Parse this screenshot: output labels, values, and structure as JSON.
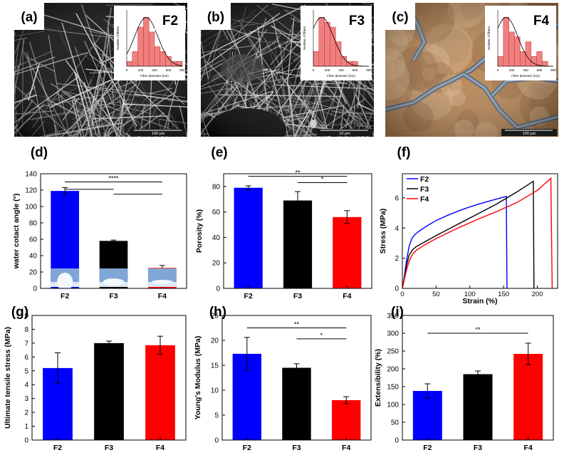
{
  "panels_img": [
    {
      "letter": "(a)",
      "tag": "F2",
      "scale_text": "100 μm",
      "inset_ylabel": "Number of fibers",
      "inset_xlabel": "Fiber diameter (nm)",
      "inset_ticks": [
        "0",
        "200",
        "400",
        "600",
        "800"
      ],
      "hist": [
        1,
        3,
        8,
        10,
        7,
        4,
        3,
        2,
        1,
        1
      ]
    },
    {
      "letter": "(b)",
      "tag": "F3",
      "scale_text": "10 μm",
      "inset_ylabel": "Number of fibers",
      "inset_xlabel": "Fiber diameter (nm)",
      "inset_ticks": [
        "0",
        "200",
        "400",
        "600",
        "800"
      ],
      "hist": [
        3,
        10,
        9,
        8,
        5,
        2,
        1,
        1,
        0,
        0
      ]
    },
    {
      "letter": "(c)",
      "tag": "F4",
      "scale_text": "100 μm",
      "inset_ylabel": "Number of fibers",
      "inset_xlabel": "Fiber diameter (nm)",
      "inset_ticks": [
        "0",
        "200",
        "400",
        "600",
        "800"
      ],
      "hist": [
        2,
        10,
        7,
        6,
        3,
        5,
        2,
        3,
        1,
        0
      ]
    }
  ],
  "colors": {
    "F2": "#0000ff",
    "F3": "#000000",
    "F4": "#ff0000",
    "sem_bg": "#151515",
    "sem_brown": "#b98858",
    "hist_fill": "#f08080"
  },
  "chart_data": [
    {
      "panel": "(d)",
      "type": "bar",
      "categories": [
        "F2",
        "F3",
        "F4"
      ],
      "values": [
        119,
        58,
        25
      ],
      "errors": [
        4,
        1,
        3
      ],
      "ylabel": "water cotact angle (°)",
      "ylim": [
        0,
        140
      ],
      "yticks": [
        0,
        20,
        40,
        60,
        80,
        100,
        120,
        140
      ],
      "significance": [
        {
          "label": "****",
          "from": 0,
          "to": 2,
          "y": 130
        }
      ],
      "grid": false
    },
    {
      "panel": "(e)",
      "type": "bar",
      "categories": [
        "F2",
        "F3",
        "F4"
      ],
      "values": [
        79,
        69,
        56
      ],
      "errors": [
        1.5,
        7,
        5
      ],
      "ylabel": "Porosity (%)",
      "ylim": [
        0,
        90
      ],
      "yticks": [
        0,
        20,
        40,
        60,
        80
      ],
      "significance": [
        {
          "label": "**",
          "from": 0,
          "to": 2,
          "y": 88
        },
        {
          "label": "*",
          "from": 1,
          "to": 2,
          "y": 83
        }
      ],
      "grid": false
    },
    {
      "panel": "(f)",
      "type": "line",
      "xlabel": "Strain (%)",
      "ylabel": "Stress (MPa)",
      "xlim": [
        0,
        230
      ],
      "ylim": [
        0,
        7.6
      ],
      "xticks": [
        0,
        50,
        100,
        150,
        200
      ],
      "yticks": [
        0,
        2,
        4,
        6
      ],
      "legend": "top-left",
      "series": [
        {
          "name": "F2",
          "x": [
            0,
            3,
            6,
            10,
            14,
            18,
            25,
            35,
            50,
            70,
            90,
            110,
            130,
            150,
            154,
            155
          ],
          "y": [
            0,
            0.8,
            1.8,
            2.8,
            3.3,
            3.55,
            3.8,
            4.1,
            4.5,
            4.9,
            5.25,
            5.55,
            5.8,
            6.05,
            6.1,
            0
          ]
        },
        {
          "name": "F3",
          "x": [
            0,
            3,
            6,
            10,
            15,
            20,
            30,
            50,
            80,
            110,
            140,
            170,
            194,
            195
          ],
          "y": [
            0,
            0.7,
            1.5,
            2.2,
            2.55,
            2.75,
            3.0,
            3.5,
            4.2,
            4.9,
            5.6,
            6.4,
            7.1,
            0
          ]
        },
        {
          "name": "F4",
          "x": [
            0,
            3,
            6,
            10,
            15,
            20,
            30,
            50,
            80,
            110,
            140,
            170,
            200,
            220,
            222
          ],
          "y": [
            0,
            0.6,
            1.2,
            1.8,
            2.25,
            2.5,
            2.8,
            3.3,
            3.95,
            4.55,
            5.1,
            5.7,
            6.5,
            7.3,
            0
          ]
        }
      ]
    },
    {
      "panel": "(g)",
      "type": "bar",
      "categories": [
        "F2",
        "F3",
        "F4"
      ],
      "values": [
        5.2,
        7.0,
        6.85
      ],
      "errors": [
        1.1,
        0.15,
        0.65
      ],
      "ylabel": "Ultimate tensile stress (MPa)",
      "ylim": [
        0,
        9
      ],
      "yticks": [
        0,
        1,
        2,
        3,
        4,
        5,
        6,
        7,
        8,
        9
      ],
      "significance": [],
      "grid": false
    },
    {
      "panel": "(h)",
      "type": "bar",
      "categories": [
        "F2",
        "F3",
        "F4"
      ],
      "values": [
        17.3,
        14.5,
        8.0
      ],
      "errors": [
        3.3,
        0.8,
        0.7
      ],
      "ylabel": "Young's Modulus (MPa)",
      "ylim": [
        0,
        25
      ],
      "yticks": [
        0,
        5,
        10,
        15,
        20,
        25
      ],
      "significance": [
        {
          "label": "**",
          "from": 0,
          "to": 2,
          "y": 22.5
        },
        {
          "label": "*",
          "from": 1,
          "to": 2,
          "y": 20.3
        }
      ],
      "grid": false
    },
    {
      "panel": "(i)",
      "type": "bar",
      "categories": [
        "F2",
        "F3",
        "F4"
      ],
      "values": [
        138,
        185,
        242
      ],
      "errors": [
        20,
        9,
        30
      ],
      "ylabel": "Extensibility (%)",
      "ylim": [
        0,
        350
      ],
      "yticks": [
        0,
        50,
        100,
        150,
        200,
        250,
        300,
        350
      ],
      "significance": [
        {
          "label": "**",
          "from": 0,
          "to": 2,
          "y": 300
        }
      ],
      "grid": false
    }
  ]
}
